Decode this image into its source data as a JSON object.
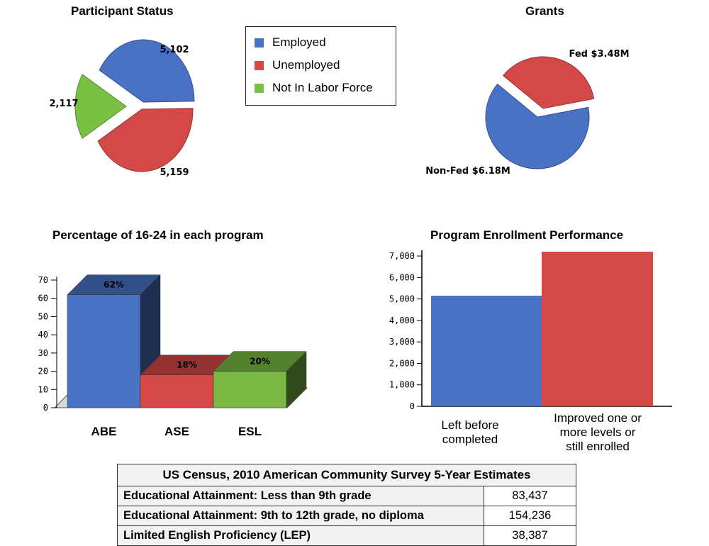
{
  "chart_data": [
    {
      "type": "pie",
      "title": "Participant Status",
      "slices": [
        {
          "name": "Employed",
          "value": 5102,
          "label": "5,102",
          "color": "#4a72c4"
        },
        {
          "name": "Unemployed",
          "value": 5159,
          "label": "5,159",
          "color": "#d44848"
        },
        {
          "name": "Not In Labor Force",
          "value": 2117,
          "label": "2,117",
          "color": "#7ac043"
        }
      ],
      "legend": [
        "Employed",
        "Unemployed",
        "Not In Labor Force"
      ],
      "legend_placement": "right"
    },
    {
      "type": "pie",
      "title": "Grants",
      "slices": [
        {
          "name": "Fed",
          "value": 3.48,
          "label": "Fed $3.48M",
          "color": "#d44848"
        },
        {
          "name": "Non-Fed",
          "value": 6.18,
          "label": "Non-Fed $6.18M",
          "color": "#4a72c4"
        }
      ]
    },
    {
      "type": "bar",
      "title": "Percentage of 16-24 in each program",
      "categories": [
        "ABE",
        "ASE",
        "ESL"
      ],
      "values": [
        62,
        18,
        20
      ],
      "data_labels": [
        "62%",
        "18%",
        "20%"
      ],
      "colors": [
        "#4a72c4",
        "#d44848",
        "#78b843"
      ],
      "ylim": [
        0,
        70
      ],
      "yticks": [
        "0",
        "10",
        "20",
        "30",
        "40",
        "50",
        "60",
        "70"
      ],
      "style": "3d"
    },
    {
      "type": "bar",
      "title": "Program Enrollment Performance",
      "categories": [
        "Left before completed",
        "Improved one or more levels or still enrolled"
      ],
      "category_lines": [
        [
          "Left before",
          "completed"
        ],
        [
          "Improved one or",
          "more levels or",
          "still enrolled"
        ]
      ],
      "values": [
        5150,
        7200
      ],
      "colors": [
        "#4a72c4",
        "#d44848"
      ],
      "ylim": [
        0,
        7200
      ],
      "yticks": [
        "0",
        "1,000",
        "2,000",
        "3,000",
        "4,000",
        "5,000",
        "6,000",
        "7,000"
      ]
    }
  ],
  "census_table": {
    "title": "US Census, 2010 American Community Survey 5-Year Estimates",
    "rows": [
      {
        "label": "Educational Attainment: Less than 9th grade",
        "value": "83,437"
      },
      {
        "label": "Educational Attainment: 9th to 12th grade, no diploma",
        "value": "154,236"
      },
      {
        "label": "Limited English Proficiency (LEP)",
        "value": "38,387"
      }
    ]
  }
}
